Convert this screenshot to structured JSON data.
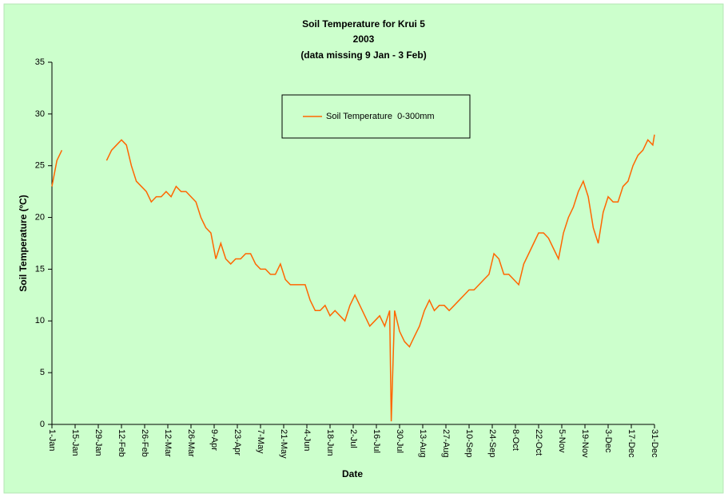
{
  "chart_data": {
    "type": "line",
    "title": "Soil Temperature for Krui 5",
    "subtitle": "2003",
    "note": "(data missing 9 Jan - 3 Feb)",
    "x_label": "Date",
    "y_label": "Soil Temperature (ºC)",
    "x": [
      "1-Jan",
      "4-Jan",
      "7-Jan",
      "9-Jan",
      "3-Feb",
      "6-Feb",
      "9-Feb",
      "12-Feb",
      "15-Feb",
      "18-Feb",
      "21-Feb",
      "24-Feb",
      "27-Feb",
      "2-Mar",
      "5-Mar",
      "8-Mar",
      "11-Mar",
      "14-Mar",
      "17-Mar",
      "20-Mar",
      "23-Mar",
      "26-Mar",
      "29-Mar",
      "1-Apr",
      "4-Apr",
      "7-Apr",
      "10-Apr",
      "13-Apr",
      "16-Apr",
      "19-Apr",
      "22-Apr",
      "25-Apr",
      "28-Apr",
      "1-May",
      "4-May",
      "7-May",
      "10-May",
      "13-May",
      "16-May",
      "19-May",
      "22-May",
      "25-May",
      "28-May",
      "31-May",
      "3-Jun",
      "6-Jun",
      "9-Jun",
      "12-Jun",
      "15-Jun",
      "18-Jun",
      "21-Jun",
      "24-Jun",
      "27-Jun",
      "30-Jun",
      "3-Jul",
      "6-Jul",
      "9-Jul",
      "12-Jul",
      "15-Jul",
      "18-Jul",
      "21-Jul",
      "24-Jul",
      "25-Jul",
      "27-Jul",
      "30-Jul",
      "2-Aug",
      "5-Aug",
      "8-Aug",
      "11-Aug",
      "14-Aug",
      "17-Aug",
      "20-Aug",
      "23-Aug",
      "26-Aug",
      "29-Aug",
      "1-Sep",
      "4-Sep",
      "7-Sep",
      "10-Sep",
      "13-Sep",
      "16-Sep",
      "19-Sep",
      "22-Sep",
      "25-Sep",
      "28-Sep",
      "1-Oct",
      "4-Oct",
      "7-Oct",
      "10-Oct",
      "13-Oct",
      "16-Oct",
      "19-Oct",
      "22-Oct",
      "25-Oct",
      "28-Oct",
      "31-Oct",
      "3-Nov",
      "6-Nov",
      "9-Nov",
      "12-Nov",
      "15-Nov",
      "18-Nov",
      "21-Nov",
      "24-Nov",
      "27-Nov",
      "30-Nov",
      "3-Dec",
      "6-Dec",
      "9-Dec",
      "12-Dec",
      "15-Dec",
      "18-Dec",
      "21-Dec",
      "24-Dec",
      "27-Dec",
      "30-Dec",
      "31-Dec"
    ],
    "series": [
      {
        "name": "Soil Temperature  0-300mm",
        "color": "#ff6600",
        "values": [
          23,
          25.5,
          26.5,
          null,
          25.5,
          26.5,
          27,
          27.5,
          27,
          25,
          23.5,
          23,
          22.5,
          21.5,
          22,
          22,
          22.5,
          22,
          23,
          22.5,
          22.5,
          22,
          21.5,
          20,
          19,
          18.5,
          16,
          17.5,
          16,
          15.5,
          16,
          16,
          16.5,
          16.5,
          15.5,
          15,
          15,
          14.5,
          14.5,
          15.5,
          14,
          13.5,
          13.5,
          13.5,
          13.5,
          12,
          11,
          11,
          11.5,
          10.5,
          11,
          10.5,
          10,
          11.5,
          12.5,
          11.5,
          10.5,
          9.5,
          10,
          10.5,
          9.5,
          11,
          0.3,
          11,
          9,
          8,
          7.5,
          8.5,
          9.5,
          11,
          12,
          11,
          11.5,
          11.5,
          11,
          11.5,
          12,
          12.5,
          13,
          13,
          13.5,
          14,
          14.5,
          16.5,
          16,
          14.5,
          14.5,
          14,
          13.5,
          15.5,
          16.5,
          17.5,
          18.5,
          18.5,
          18,
          17,
          16,
          18.5,
          20,
          21,
          22.5,
          23.5,
          22,
          19,
          17.5,
          20.5,
          22,
          21.5,
          21.5,
          23,
          23.5,
          25,
          26,
          26.5,
          27.5,
          27,
          28
        ]
      }
    ],
    "xlim": [
      "1-Jan",
      "31-Dec"
    ],
    "xticks": [
      "1-Jan",
      "15-Jan",
      "29-Jan",
      "12-Feb",
      "26-Feb",
      "12-Mar",
      "26-Mar",
      "9-Apr",
      "23-Apr",
      "7-May",
      "21-May",
      "4-Jun",
      "18-Jun",
      "2-Jul",
      "16-Jul",
      "30-Jul",
      "13-Aug",
      "27-Aug",
      "10-Sep",
      "24-Sep",
      "8-Oct",
      "22-Oct",
      "5-Nov",
      "19-Nov",
      "3-Dec",
      "17-Dec",
      "31-Dec"
    ],
    "ylim": [
      0,
      35
    ],
    "yticks": [
      0,
      5,
      10,
      15,
      20,
      25,
      30,
      35
    ],
    "grid": false,
    "legend": "top"
  }
}
